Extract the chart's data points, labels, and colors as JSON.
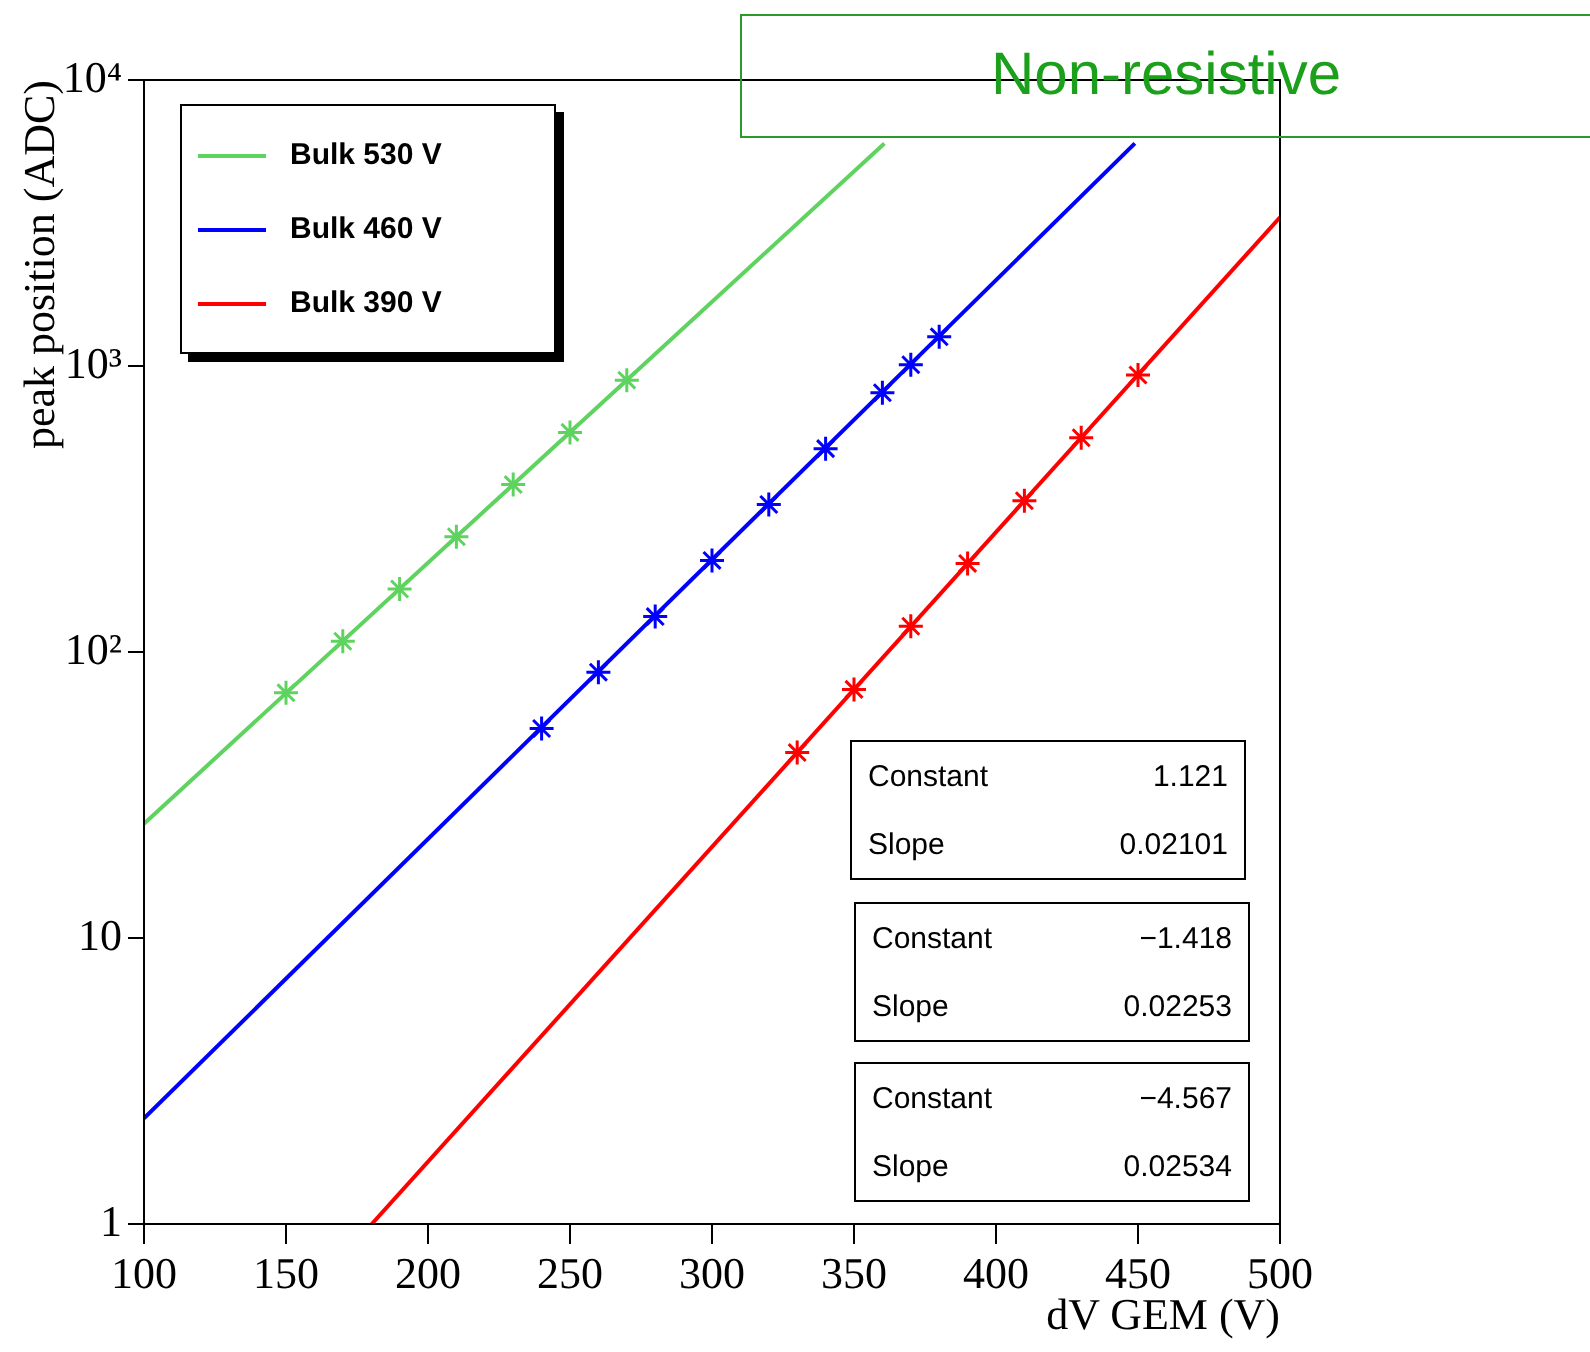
{
  "chart_data": {
    "type": "line",
    "xlabel": "dV GEM (V)",
    "ylabel": "peak position (ADC)",
    "log": "y",
    "xlim": [
      100,
      500
    ],
    "xticks": [
      100,
      150,
      200,
      250,
      300,
      350,
      400,
      450,
      500
    ],
    "ylim": [
      1,
      10000
    ],
    "yticks": [
      1,
      10,
      {
        "value": 100,
        "label": "10²"
      },
      {
        "value": 1000,
        "label": "10³"
      },
      {
        "value": 10000,
        "label": "10⁴"
      }
    ],
    "legend": "top left",
    "grid": false,
    "series": [
      {
        "name": "Bulk 530 V",
        "color": "#5fd35f",
        "marker": "none",
        "x": [
          100,
          360.7
        ],
        "values": [
          25.1,
          6000
        ]
      },
      {
        "name": "Bulk 460 V",
        "color": "#0000ff",
        "marker": "none",
        "x": [
          100,
          448.9
        ],
        "values": [
          2.34,
          6000
        ]
      },
      {
        "name": "Bulk 390 V",
        "color": "#ff0000",
        "marker": "none",
        "x": [
          180.2,
          500
        ],
        "values": [
          1,
          3310
        ]
      },
      {
        "type": "scatter",
        "color": "#5fd35f",
        "marker": "cross",
        "x": [
          150,
          170,
          190,
          210,
          230,
          250,
          270
        ],
        "values": [
          72,
          109,
          166,
          253,
          385,
          586,
          892
        ]
      },
      {
        "type": "scatter",
        "color": "#0000ff",
        "marker": "cross",
        "x": [
          240,
          260,
          280,
          300,
          320,
          340,
          360,
          370,
          380
        ],
        "values": [
          54,
          85,
          133,
          209,
          328,
          514,
          806,
          1010,
          1265
        ]
      },
      {
        "type": "scatter",
        "color": "#ff0000",
        "marker": "cross",
        "x": [
          330,
          350,
          370,
          390,
          410,
          430,
          450
        ],
        "values": [
          44.5,
          74,
          123,
          204,
          338,
          561,
          930
        ]
      }
    ],
    "annotations": [
      "Non-resistive",
      "Constant",
      "1.121",
      "Slope",
      "0.02101",
      "Constant",
      "−1.418",
      "Slope",
      "0.02253",
      "Constant",
      "−4.567",
      "Slope",
      "0.02534"
    ]
  }
}
